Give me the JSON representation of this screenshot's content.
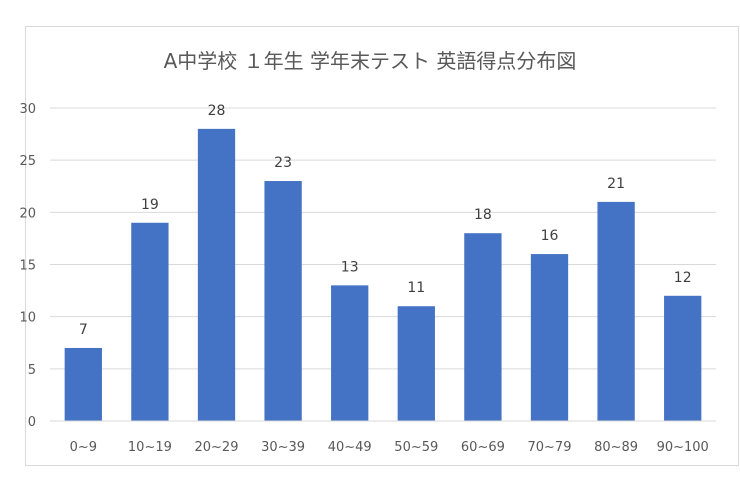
{
  "chart_data": {
    "type": "bar",
    "title": "A中学校 １年生 学年末テスト 英語得点分布図",
    "categories": [
      "0~9",
      "10~19",
      "20~29",
      "30~39",
      "40~49",
      "50~59",
      "60~69",
      "70~79",
      "80~89",
      "90~100"
    ],
    "values": [
      7,
      19,
      28,
      23,
      13,
      11,
      18,
      16,
      21,
      12
    ],
    "ylim": [
      0,
      30
    ],
    "yticks": [
      0,
      5,
      10,
      15,
      20,
      25,
      30
    ],
    "grid": true,
    "data_labels": true,
    "bar_color": "#4472c4",
    "xlabel": "",
    "ylabel": ""
  }
}
